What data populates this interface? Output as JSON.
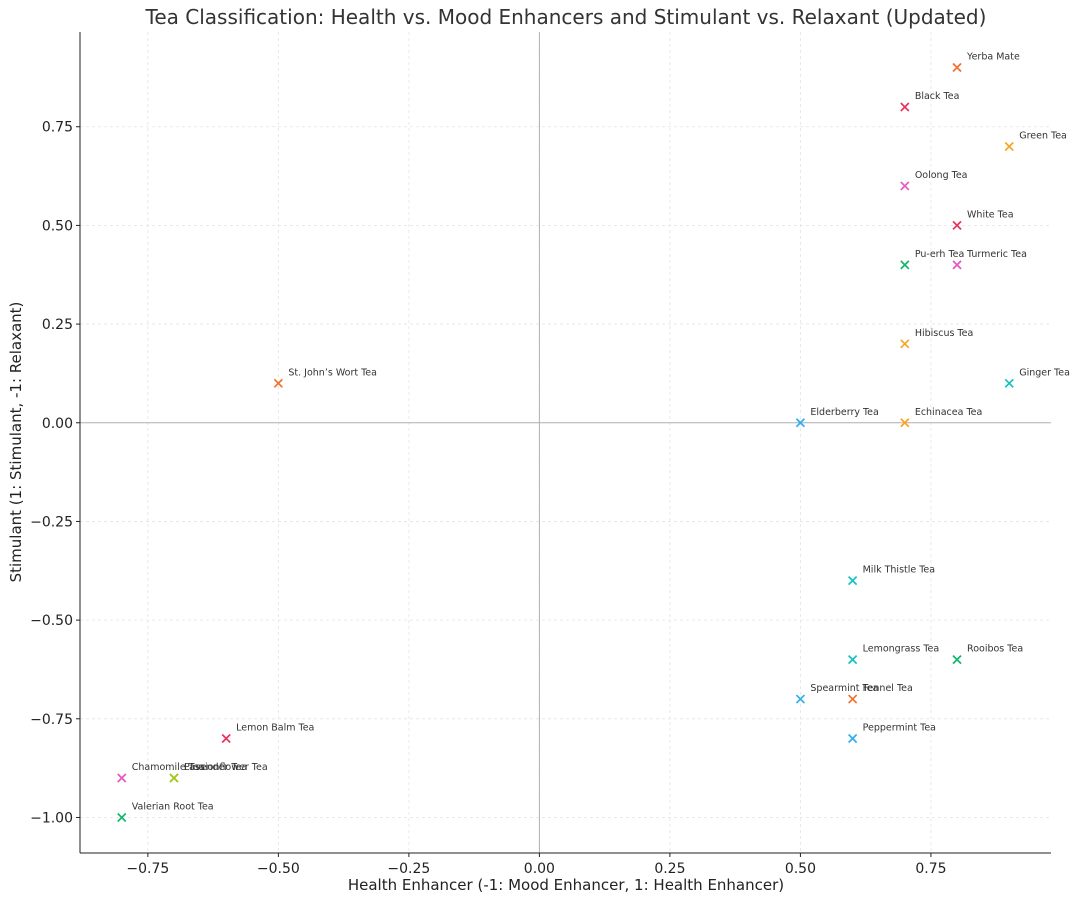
{
  "chart_data": {
    "type": "scatter",
    "title": "Tea Classification: Health vs. Mood Enhancers and Stimulant vs. Relaxant (Updated)",
    "xlabel": "Health Enhancer (-1: Mood Enhancer, 1: Health Enhancer)",
    "ylabel": "Stimulant (1: Stimulant, -1: Relaxant)",
    "xlim": [
      -0.88,
      0.98
    ],
    "ylim": [
      -1.09,
      0.99
    ],
    "xticks": [
      -0.75,
      -0.5,
      -0.25,
      0.0,
      0.25,
      0.5,
      0.75
    ],
    "xtick_labels": [
      "−0.75",
      "−0.50",
      "−0.25",
      "0.00",
      "0.25",
      "0.50",
      "0.75"
    ],
    "yticks": [
      -1.0,
      -0.75,
      -0.5,
      -0.25,
      0.0,
      0.25,
      0.5,
      0.75
    ],
    "ytick_labels": [
      "−1.00",
      "−0.75",
      "−0.50",
      "−0.25",
      "0.00",
      "0.25",
      "0.50",
      "0.75"
    ],
    "grid": true,
    "marker": "x",
    "points": [
      {
        "label": "Yerba Mate",
        "x": 0.8,
        "y": 0.9,
        "color": "#f07030"
      },
      {
        "label": "Black Tea",
        "x": 0.7,
        "y": 0.8,
        "color": "#e8335a"
      },
      {
        "label": "Green Tea",
        "x": 0.9,
        "y": 0.7,
        "color": "#f5a623"
      },
      {
        "label": "Oolong Tea",
        "x": 0.7,
        "y": 0.6,
        "color": "#e755c0"
      },
      {
        "label": "White Tea",
        "x": 0.8,
        "y": 0.5,
        "color": "#e8335a"
      },
      {
        "label": "Pu-erh Tea",
        "x": 0.7,
        "y": 0.4,
        "color": "#12b76a"
      },
      {
        "label": "Turmeric Tea",
        "x": 0.8,
        "y": 0.4,
        "color": "#e755c0"
      },
      {
        "label": "Hibiscus Tea",
        "x": 0.7,
        "y": 0.2,
        "color": "#f5a623"
      },
      {
        "label": "Ginger Tea",
        "x": 0.9,
        "y": 0.1,
        "color": "#13c2c2"
      },
      {
        "label": "St. John’s Wort Tea",
        "x": -0.5,
        "y": 0.1,
        "color": "#f07030"
      },
      {
        "label": "Elderberry Tea",
        "x": 0.5,
        "y": 0.0,
        "color": "#2eaef0"
      },
      {
        "label": "Echinacea Tea",
        "x": 0.7,
        "y": 0.0,
        "color": "#f5a623"
      },
      {
        "label": "Milk Thistle Tea",
        "x": 0.6,
        "y": -0.4,
        "color": "#13c2c2"
      },
      {
        "label": "Lemongrass Tea",
        "x": 0.6,
        "y": -0.6,
        "color": "#13c2c2"
      },
      {
        "label": "Rooibos Tea",
        "x": 0.8,
        "y": -0.6,
        "color": "#12b76a"
      },
      {
        "label": "Spearmint Tea",
        "x": 0.5,
        "y": -0.7,
        "color": "#2eaef0"
      },
      {
        "label": "Fennel Tea",
        "x": 0.6,
        "y": -0.7,
        "color": "#f07030"
      },
      {
        "label": "Peppermint Tea",
        "x": 0.6,
        "y": -0.8,
        "color": "#2eaef0"
      },
      {
        "label": "Lemon Balm Tea",
        "x": -0.6,
        "y": -0.8,
        "color": "#e8335a"
      },
      {
        "label": "Chamomile Tea",
        "x": -0.8,
        "y": -0.9,
        "color": "#e755c0"
      },
      {
        "label": "Passionflower Tea",
        "x": -0.7,
        "y": -0.9,
        "color": "#a0c820"
      },
      {
        "label": "Lavender Tea",
        "x": -0.7,
        "y": -0.9,
        "color": "#a0c820"
      },
      {
        "label": "Valerian Root Tea",
        "x": -0.8,
        "y": -1.0,
        "color": "#12b76a"
      }
    ]
  }
}
